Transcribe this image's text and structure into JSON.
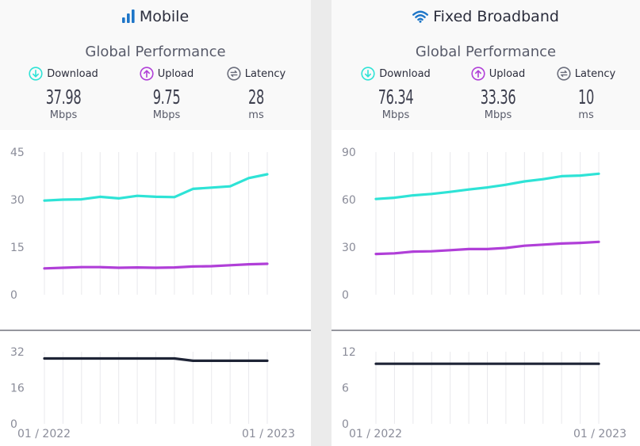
{
  "chart_data": [
    {
      "type": "line",
      "title": "Mobile",
      "subtitle": "Global Performance",
      "metrics": [
        {
          "label": "Download",
          "value": "37.98",
          "unit": "Mbps",
          "color": "#2ee3d6"
        },
        {
          "label": "Upload",
          "value": "9.75",
          "unit": "Mbps",
          "color": "#b03fd8"
        },
        {
          "label": "Latency",
          "value": "28",
          "unit": "ms",
          "color": "#6b6e7c"
        }
      ],
      "x_labels": [
        "01 / 2022",
        "01 / 2023"
      ],
      "speed_axis": {
        "ticks": [
          "45",
          "30",
          "15",
          "0"
        ],
        "ylim": [
          0,
          45
        ]
      },
      "latency_axis": {
        "ticks": [
          "32",
          "16",
          "0"
        ],
        "ylim": [
          0,
          32
        ]
      },
      "series": [
        {
          "name": "Download",
          "color": "#2ee3d6",
          "values": [
            29.7,
            30.0,
            30.1,
            30.9,
            30.4,
            31.2,
            30.9,
            30.8,
            33.4,
            33.8,
            34.2,
            36.8,
            38.0
          ]
        },
        {
          "name": "Upload",
          "color": "#b03fd8",
          "values": [
            8.3,
            8.5,
            8.7,
            8.7,
            8.5,
            8.6,
            8.5,
            8.6,
            8.9,
            9.0,
            9.3,
            9.6,
            9.75
          ]
        }
      ],
      "latency": {
        "name": "Latency",
        "color": "#1e2436",
        "values": [
          29,
          29,
          29,
          29,
          29,
          29,
          29,
          29,
          28,
          28,
          28,
          28,
          28
        ]
      }
    },
    {
      "type": "line",
      "title": "Fixed Broadband",
      "subtitle": "Global Performance",
      "metrics": [
        {
          "label": "Download",
          "value": "76.34",
          "unit": "Mbps",
          "color": "#2ee3d6"
        },
        {
          "label": "Upload",
          "value": "33.36",
          "unit": "Mbps",
          "color": "#b03fd8"
        },
        {
          "label": "Latency",
          "value": "10",
          "unit": "ms",
          "color": "#6b6e7c"
        }
      ],
      "x_labels": [
        "01 / 2022",
        "01 / 2023"
      ],
      "speed_axis": {
        "ticks": [
          "90",
          "60",
          "30",
          "0"
        ],
        "ylim": [
          0,
          90
        ]
      },
      "latency_axis": {
        "ticks": [
          "12",
          "6",
          "0"
        ],
        "ylim": [
          0,
          12
        ]
      },
      "series": [
        {
          "name": "Download",
          "color": "#2ee3d6",
          "values": [
            60.4,
            61.2,
            62.7,
            63.6,
            64.9,
            66.4,
            67.7,
            69.4,
            71.5,
            72.9,
            74.8,
            75.2,
            76.34
          ]
        },
        {
          "name": "Upload",
          "color": "#b03fd8",
          "values": [
            25.7,
            26.1,
            27.2,
            27.4,
            28.1,
            28.8,
            28.8,
            29.5,
            30.9,
            31.6,
            32.3,
            32.7,
            33.36
          ]
        }
      ],
      "latency": {
        "name": "Latency",
        "color": "#1e2436",
        "values": [
          10,
          10,
          10,
          10,
          10,
          10,
          10,
          10,
          10,
          10,
          10,
          10,
          10
        ]
      }
    }
  ]
}
